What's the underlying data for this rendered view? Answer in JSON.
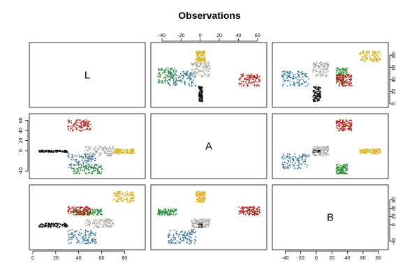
{
  "title": "Observations",
  "chart_data": {
    "type": "scatter",
    "title": "Observations",
    "variables": [
      "L",
      "A",
      "B"
    ],
    "axes": {
      "L": {
        "range": [
          0,
          95
        ],
        "ticks": [
          0,
          20,
          40,
          60,
          80
        ]
      },
      "A": {
        "range": [
          -48,
          66
        ],
        "ticks": [
          -40,
          -20,
          0,
          20,
          40,
          60
        ]
      },
      "B": {
        "range": [
          -52,
          88
        ],
        "ticks": [
          -40,
          -20,
          0,
          20,
          40,
          60,
          80
        ]
      }
    },
    "top_axis_ticks": {
      "A": [
        -40,
        -20,
        0,
        20,
        40,
        60
      ]
    },
    "right_axis_ticks": {
      "L": [
        0,
        20,
        40,
        60,
        80
      ],
      "B": [
        -40,
        0,
        20,
        40,
        60
      ]
    },
    "left_axis_ticks": {
      "A": [
        -40,
        0,
        20,
        40,
        60
      ]
    },
    "bottom_axis_ticks": {
      "L": [
        0,
        20,
        40,
        60,
        80
      ],
      "B": [
        -40,
        -20,
        0,
        20,
        40,
        60,
        80
      ]
    },
    "color_groups": [
      {
        "name": "black",
        "color": "#111111",
        "L": [
          5,
          30
        ],
        "A": [
          -2,
          2
        ],
        "B": [
          -5,
          5
        ]
      },
      {
        "name": "blue",
        "color": "#2e6f9a",
        "L": [
          30,
          55
        ],
        "A": [
          -35,
          -5
        ],
        "B": [
          -45,
          -10
        ]
      },
      {
        "name": "green",
        "color": "#2f8f3a",
        "L": [
          35,
          60
        ],
        "A": [
          -45,
          -25
        ],
        "B": [
          25,
          40
        ]
      },
      {
        "name": "red",
        "color": "#b41e14",
        "L": [
          30,
          50
        ],
        "A": [
          40,
          62
        ],
        "B": [
          25,
          45
        ]
      },
      {
        "name": "yellow",
        "color": "#d9b21e",
        "L": [
          70,
          88
        ],
        "A": [
          -5,
          5
        ],
        "B": [
          55,
          82
        ]
      },
      {
        "name": "grey",
        "color": "#a8a8a0",
        "L": [
          45,
          70
        ],
        "A": [
          -10,
          10
        ],
        "B": [
          -5,
          15
        ]
      }
    ]
  }
}
